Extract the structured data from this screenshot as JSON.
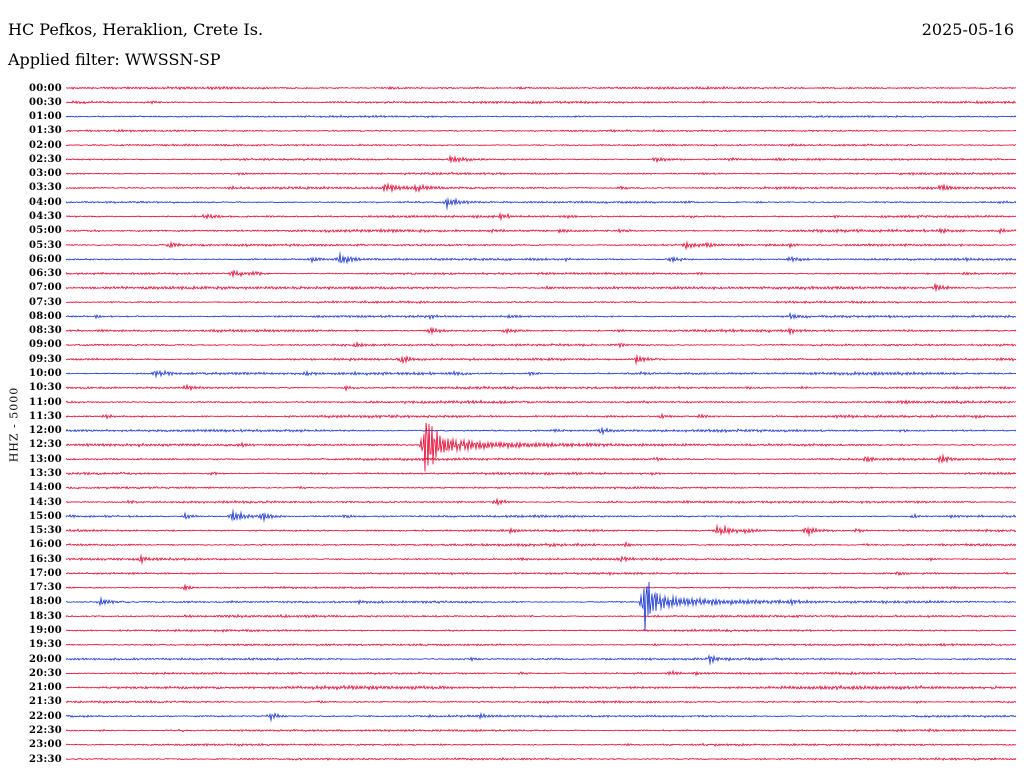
{
  "header": {
    "station": "HC Pefkos, Heraklion, Crete Is.",
    "date": "2025-05-16",
    "filter_label": "Applied filter: WWSSN-SP"
  },
  "chart_data": {
    "type": "line",
    "subtype": "helicorder-seismogram",
    "station": "HC Pefkos, Heraklion, Crete Is.",
    "date": "2025-05-16",
    "filter": "WWSSN-SP",
    "channel_scale": "HHZ - 5000",
    "minutes_per_row": 30,
    "rows_count": 48,
    "time_range": [
      "00:00",
      "23:30"
    ],
    "legend": "each row is 30 minutes; events listed as [position_fraction, amplitude_px, decay_px]",
    "colors": {
      "red": "#e4002b",
      "blue": "#1130d0",
      "text": "#000000",
      "background": "#ffffff"
    },
    "rows": [
      {
        "time": "00:00",
        "color": "red",
        "noise": 0.8,
        "events": [
          [
            0.341,
            1.5,
            40
          ],
          [
            0.425,
            1.2,
            25
          ],
          [
            0.478,
            1.5,
            30
          ],
          [
            0.82,
            1.1,
            20
          ]
        ]
      },
      {
        "time": "00:30",
        "color": "red",
        "noise": 0.85,
        "events": [
          [
            0.091,
            2,
            8
          ],
          [
            0.604,
            1.3,
            40
          ],
          [
            0.667,
            1.2,
            30
          ]
        ]
      },
      {
        "time": "01:00",
        "color": "blue",
        "noise": 0.6,
        "events": [
          [
            0.536,
            1.0,
            30
          ]
        ]
      },
      {
        "time": "01:30",
        "color": "red",
        "noise": 0.6,
        "events": [
          [
            0.057,
            1.3,
            15
          ],
          [
            0.573,
            1.5,
            20
          ]
        ]
      },
      {
        "time": "02:00",
        "color": "red",
        "noise": 0.6,
        "events": [
          [
            0.309,
            1.2,
            20
          ],
          [
            0.762,
            1.5,
            25
          ]
        ]
      },
      {
        "time": "02:30",
        "color": "red",
        "noise": 0.7,
        "events": [
          [
            0.404,
            4,
            22
          ],
          [
            0.62,
            3,
            18
          ],
          [
            0.699,
            2,
            14
          ],
          [
            0.746,
            1.8,
            14
          ]
        ]
      },
      {
        "time": "03:00",
        "color": "red",
        "noise": 0.7,
        "events": [
          [
            0.183,
            1.6,
            18
          ],
          [
            0.667,
            1.4,
            20
          ],
          [
            0.878,
            1.4,
            16
          ]
        ]
      },
      {
        "time": "03:30",
        "color": "red",
        "noise": 0.9,
        "events": [
          [
            0.173,
            2,
            14
          ],
          [
            0.336,
            4.5,
            30
          ],
          [
            0.367,
            4,
            25
          ],
          [
            0.583,
            1.8,
            16
          ],
          [
            0.752,
            1.6,
            14
          ],
          [
            0.92,
            4,
            18
          ]
        ]
      },
      {
        "time": "04:00",
        "color": "blue",
        "noise": 0.7,
        "events": [
          [
            0.401,
            6,
            16
          ],
          [
            0.652,
            2,
            14
          ],
          [
            0.725,
            1.6,
            12
          ],
          [
            0.983,
            2,
            12
          ]
        ]
      },
      {
        "time": "04:30",
        "color": "red",
        "noise": 0.8,
        "events": [
          [
            0.146,
            3.5,
            16
          ],
          [
            0.457,
            3.5,
            20
          ],
          [
            0.525,
            2.5,
            14
          ],
          [
            0.657,
            1.6,
            12
          ],
          [
            0.809,
            1.5,
            12
          ]
        ]
      },
      {
        "time": "05:00",
        "color": "red",
        "noise": 1.0,
        "events": [
          [
            0.446,
            2.5,
            20
          ],
          [
            0.52,
            2.5,
            18
          ],
          [
            0.583,
            2,
            14
          ],
          [
            0.92,
            3,
            14
          ],
          [
            0.983,
            2.5,
            10
          ]
        ]
      },
      {
        "time": "05:30",
        "color": "red",
        "noise": 0.8,
        "events": [
          [
            0.109,
            3.5,
            14
          ],
          [
            0.652,
            4.5,
            16
          ],
          [
            0.673,
            3.5,
            14
          ],
          [
            0.762,
            2.5,
            12
          ],
          [
            0.846,
            1.8,
            12
          ]
        ]
      },
      {
        "time": "06:00",
        "color": "blue",
        "noise": 0.8,
        "events": [
          [
            0.257,
            3.5,
            14
          ],
          [
            0.288,
            6.5,
            16
          ],
          [
            0.525,
            2,
            12
          ],
          [
            0.636,
            3.5,
            16
          ],
          [
            0.762,
            3.5,
            14
          ],
          [
            0.946,
            2.5,
            12
          ]
        ]
      },
      {
        "time": "06:30",
        "color": "red",
        "noise": 0.8,
        "events": [
          [
            0.175,
            4.5,
            14
          ],
          [
            0.194,
            3.5,
            12
          ],
          [
            0.667,
            1.8,
            12
          ],
          [
            0.946,
            2.5,
            12
          ]
        ]
      },
      {
        "time": "07:00",
        "color": "red",
        "noise": 1.1,
        "events": [
          [
            0.299,
            1.8,
            14
          ],
          [
            0.504,
            1.8,
            12
          ],
          [
            0.641,
            2.5,
            14
          ],
          [
            0.915,
            4.5,
            16
          ]
        ]
      },
      {
        "time": "07:30",
        "color": "red",
        "noise": 0.7,
        "events": [
          [
            0.373,
            1.3,
            12
          ],
          [
            0.762,
            1.5,
            14
          ]
        ]
      },
      {
        "time": "08:00",
        "color": "blue",
        "noise": 0.8,
        "events": [
          [
            0.031,
            1.8,
            10
          ],
          [
            0.383,
            2.5,
            14
          ],
          [
            0.467,
            2.5,
            14
          ],
          [
            0.762,
            3.5,
            16
          ],
          [
            0.867,
            2,
            12
          ]
        ]
      },
      {
        "time": "08:30",
        "color": "red",
        "noise": 0.9,
        "events": [
          [
            0.036,
            2,
            10
          ],
          [
            0.383,
            3.5,
            16
          ],
          [
            0.462,
            3.5,
            14
          ],
          [
            0.583,
            2,
            12
          ],
          [
            0.762,
            3.5,
            14
          ],
          [
            0.883,
            2,
            10
          ]
        ]
      },
      {
        "time": "09:00",
        "color": "red",
        "noise": 0.8,
        "events": [
          [
            0.304,
            3,
            14
          ],
          [
            0.583,
            2.5,
            14
          ],
          [
            0.794,
            1.6,
            12
          ]
        ]
      },
      {
        "time": "09:30",
        "color": "red",
        "noise": 0.8,
        "events": [
          [
            0.299,
            2,
            10
          ],
          [
            0.352,
            4.5,
            16
          ],
          [
            0.599,
            4.5,
            16
          ]
        ]
      },
      {
        "time": "10:00",
        "color": "blue",
        "noise": 1.0,
        "events": [
          [
            0.094,
            4.5,
            16
          ],
          [
            0.252,
            2.5,
            12
          ],
          [
            0.304,
            2.5,
            12
          ],
          [
            0.409,
            3.5,
            14
          ],
          [
            0.488,
            2.5,
            12
          ],
          [
            0.604,
            2,
            10
          ],
          [
            0.899,
            2.5,
            12
          ]
        ]
      },
      {
        "time": "10:30",
        "color": "red",
        "noise": 0.9,
        "events": [
          [
            0.125,
            3.5,
            14
          ],
          [
            0.294,
            2.5,
            12
          ],
          [
            0.715,
            2,
            10
          ],
          [
            0.773,
            1.8,
            10
          ]
        ]
      },
      {
        "time": "11:00",
        "color": "red",
        "noise": 0.9,
        "events": [
          [
            0.373,
            2,
            12
          ],
          [
            0.604,
            2,
            12
          ],
          [
            0.883,
            2.5,
            14
          ],
          [
            0.951,
            2,
            10
          ]
        ]
      },
      {
        "time": "11:30",
        "color": "red",
        "noise": 0.9,
        "events": [
          [
            0.041,
            3,
            12
          ],
          [
            0.625,
            2.5,
            14
          ],
          [
            0.667,
            2.5,
            12
          ],
          [
            0.852,
            2,
            10
          ],
          [
            0.957,
            2.5,
            10
          ]
        ]
      },
      {
        "time": "12:00",
        "color": "blue",
        "noise": 0.9,
        "events": [
          [
            0.515,
            2.5,
            12
          ],
          [
            0.562,
            4,
            14
          ],
          [
            0.746,
            1.8,
            10
          ],
          [
            0.878,
            1.8,
            10
          ]
        ]
      },
      {
        "time": "12:30",
        "color": "red",
        "noise": 0.9,
        "events": [
          [
            0.12,
            1.6,
            10
          ],
          [
            0.183,
            3,
            12
          ],
          [
            0.378,
            40,
            12
          ],
          [
            0.39,
            10,
            55
          ],
          [
            0.43,
            4,
            140
          ]
        ]
      },
      {
        "time": "13:00",
        "color": "red",
        "noise": 0.9,
        "events": [
          [
            0.62,
            2.5,
            12
          ],
          [
            0.841,
            3.5,
            14
          ],
          [
            0.92,
            4.5,
            16
          ]
        ]
      },
      {
        "time": "13:30",
        "color": "red",
        "noise": 0.8,
        "events": [
          [
            0.152,
            2.5,
            12
          ],
          [
            0.441,
            1.6,
            10
          ],
          [
            0.615,
            2,
            12
          ]
        ]
      },
      {
        "time": "14:00",
        "color": "red",
        "noise": 0.7,
        "events": [
          [
            0.246,
            1.2,
            10
          ],
          [
            0.52,
            1.5,
            12
          ]
        ]
      },
      {
        "time": "14:30",
        "color": "red",
        "noise": 0.8,
        "events": [
          [
            0.067,
            2.5,
            12
          ],
          [
            0.452,
            3.5,
            14
          ],
          [
            0.573,
            2,
            10
          ],
          [
            0.652,
            1.8,
            10
          ]
        ]
      },
      {
        "time": "15:00",
        "color": "blue",
        "noise": 0.8,
        "events": [
          [
            0.125,
            3.5,
            12
          ],
          [
            0.175,
            6.5,
            14
          ],
          [
            0.206,
            5.5,
            14
          ],
          [
            0.294,
            2.5,
            10
          ],
          [
            0.891,
            2.5,
            12
          ],
          [
            0.931,
            2,
            10
          ]
        ]
      },
      {
        "time": "15:30",
        "color": "red",
        "noise": 0.8,
        "events": [
          [
            0.467,
            2.5,
            12
          ],
          [
            0.686,
            7.5,
            16
          ],
          [
            0.715,
            4,
            12
          ],
          [
            0.778,
            5.5,
            14
          ],
          [
            0.831,
            2.5,
            10
          ],
          [
            0.878,
            2,
            10
          ]
        ]
      },
      {
        "time": "16:00",
        "color": "red",
        "noise": 0.8,
        "events": [
          [
            0.509,
            2.5,
            12
          ],
          [
            0.536,
            2,
            10
          ],
          [
            0.588,
            2.5,
            12
          ],
          [
            0.841,
            1.6,
            10
          ]
        ]
      },
      {
        "time": "16:30",
        "color": "red",
        "noise": 0.8,
        "events": [
          [
            0.078,
            4.5,
            14
          ],
          [
            0.478,
            2.5,
            12
          ],
          [
            0.583,
            3.5,
            14
          ],
          [
            0.909,
            1.8,
            10
          ]
        ]
      },
      {
        "time": "17:00",
        "color": "red",
        "noise": 0.7,
        "events": [
          [
            0.404,
            1.6,
            10
          ],
          [
            0.573,
            1.6,
            10
          ],
          [
            0.875,
            2.5,
            12
          ]
        ]
      },
      {
        "time": "17:30",
        "color": "red",
        "noise": 0.7,
        "events": [
          [
            0.125,
            4,
            8
          ],
          [
            0.415,
            1.4,
            8
          ],
          [
            0.783,
            1.6,
            10
          ]
        ]
      },
      {
        "time": "18:00",
        "color": "blue",
        "noise": 0.8,
        "events": [
          [
            0.036,
            4.5,
            14
          ],
          [
            0.309,
            2.5,
            12
          ],
          [
            0.609,
            33,
            12
          ],
          [
            0.62,
            9,
            50
          ],
          [
            0.657,
            4,
            110
          ],
          [
            0.762,
            4,
            16
          ],
          [
            0.909,
            2,
            10
          ]
        ]
      },
      {
        "time": "18:30",
        "color": "red",
        "noise": 0.8,
        "events": [
          [
            0.125,
            2,
            10
          ],
          [
            0.183,
            1.8,
            10
          ],
          [
            0.62,
            1.6,
            10
          ]
        ]
      },
      {
        "time": "19:00",
        "color": "red",
        "noise": 0.7,
        "events": [
          [
            0.404,
            1.4,
            10
          ],
          [
            0.667,
            1.3,
            10
          ]
        ]
      },
      {
        "time": "19:30",
        "color": "red",
        "noise": 0.7,
        "events": [
          [
            0.088,
            1.3,
            8
          ],
          [
            0.62,
            1.8,
            8
          ]
        ]
      },
      {
        "time": "20:00",
        "color": "blue",
        "noise": 0.8,
        "events": [
          [
            0.425,
            2,
            10
          ],
          [
            0.678,
            6,
            8
          ],
          [
            0.694,
            2.5,
            10
          ],
          [
            0.794,
            1.6,
            10
          ]
        ]
      },
      {
        "time": "20:30",
        "color": "red",
        "noise": 0.8,
        "events": [
          [
            0.478,
            1.8,
            10
          ],
          [
            0.636,
            3.5,
            12
          ],
          [
            0.662,
            2.5,
            10
          ]
        ]
      },
      {
        "time": "21:00",
        "color": "red",
        "noise": 1.3,
        "events": [
          [
            0.299,
            2,
            12
          ],
          [
            0.562,
            1.8,
            12
          ],
          [
            0.762,
            2,
            12
          ]
        ]
      },
      {
        "time": "21:30",
        "color": "red",
        "noise": 0.7,
        "events": [
          [
            0.267,
            1.3,
            8
          ],
          [
            0.894,
            1.8,
            10
          ]
        ]
      },
      {
        "time": "22:00",
        "color": "blue",
        "noise": 0.8,
        "events": [
          [
            0.215,
            5,
            8
          ],
          [
            0.383,
            1.8,
            8
          ],
          [
            0.436,
            5,
            8
          ],
          [
            0.836,
            1.4,
            8
          ]
        ]
      },
      {
        "time": "22:30",
        "color": "red",
        "noise": 0.7,
        "events": [
          [
            0.036,
            1.4,
            8
          ],
          [
            0.12,
            1.6,
            8
          ],
          [
            0.909,
            1.8,
            8
          ]
        ]
      },
      {
        "time": "23:00",
        "color": "red",
        "noise": 0.7,
        "events": [
          [
            0.204,
            1.3,
            8
          ],
          [
            0.588,
            1.6,
            8
          ]
        ]
      },
      {
        "time": "23:30",
        "color": "red",
        "noise": 0.7,
        "events": [
          [
            0.457,
            1.3,
            8
          ],
          [
            0.773,
            1.2,
            8
          ]
        ]
      }
    ]
  }
}
